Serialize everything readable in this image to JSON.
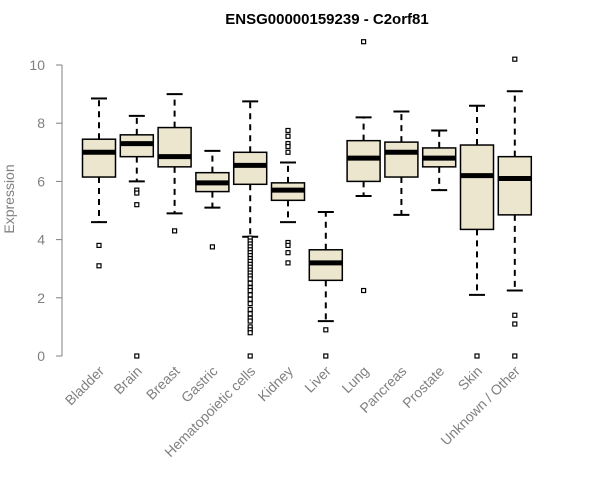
{
  "chart_data": {
    "type": "box",
    "title": "ENSG00000159239 - C2orf81",
    "xlabel": "",
    "ylabel": "Expression",
    "ylim": [
      0,
      11.0
    ],
    "y_ticks": [
      0,
      2,
      4,
      6,
      8,
      10
    ],
    "y_tick_labels": [
      "0",
      "2",
      "4",
      "6",
      "8",
      "10"
    ],
    "grid": false,
    "colors": {
      "box_fill": "#ede6cf",
      "stroke": "#000000",
      "axis": "#808080",
      "title": "#000000"
    },
    "categories": [
      "Bladder",
      "Brain",
      "Breast",
      "Gastric",
      "Hematopoietic cells",
      "Kidney",
      "Liver",
      "Lung",
      "Pancreas",
      "Prostate",
      "Skin",
      "Unknown / Other"
    ],
    "boxes": [
      {
        "name": "Bladder",
        "whisker_low": 4.6,
        "q1": 6.15,
        "median": 7.0,
        "q3": 7.45,
        "whisker_high": 8.85,
        "outliers": [
          3.8,
          3.1
        ]
      },
      {
        "name": "Brain",
        "whisker_low": 6.0,
        "q1": 6.85,
        "median": 7.3,
        "q3": 7.6,
        "whisker_high": 8.25,
        "outliers": [
          5.7,
          5.6,
          5.2,
          0.0
        ]
      },
      {
        "name": "Breast",
        "whisker_low": 4.9,
        "q1": 6.5,
        "median": 6.85,
        "q3": 7.85,
        "whisker_high": 9.0,
        "outliers": [
          4.3
        ]
      },
      {
        "name": "Gastric",
        "whisker_low": 5.1,
        "q1": 5.65,
        "median": 5.95,
        "q3": 6.3,
        "whisker_high": 7.05,
        "outliers": [
          3.75
        ]
      },
      {
        "name": "Hematopoietic cells",
        "whisker_low": 4.1,
        "q1": 5.9,
        "median": 6.55,
        "q3": 7.0,
        "whisker_high": 8.75,
        "outliers": [
          4.05,
          3.95,
          3.85,
          3.75,
          3.65,
          3.55,
          3.45,
          3.35,
          3.25,
          3.15,
          3.05,
          2.95,
          2.85,
          2.75,
          2.65,
          2.5,
          2.35,
          2.25,
          2.1,
          1.95,
          1.8,
          1.6,
          1.45,
          1.3,
          1.2,
          1.0,
          0.9,
          0.8,
          0.0
        ]
      },
      {
        "name": "Kidney",
        "whisker_low": 4.6,
        "q1": 5.35,
        "median": 5.7,
        "q3": 5.95,
        "whisker_high": 6.65,
        "outliers": [
          7.75,
          7.55,
          7.3,
          7.2,
          7.0,
          3.9,
          3.8,
          3.55,
          3.2
        ]
      },
      {
        "name": "Liver",
        "whisker_low": 1.2,
        "q1": 2.6,
        "median": 3.2,
        "q3": 3.65,
        "whisker_high": 4.95,
        "outliers": [
          0.9,
          0.0
        ]
      },
      {
        "name": "Lung",
        "whisker_low": 5.5,
        "q1": 6.0,
        "median": 6.8,
        "q3": 7.4,
        "whisker_high": 8.2,
        "outliers": [
          10.8,
          2.25
        ]
      },
      {
        "name": "Pancreas",
        "whisker_low": 4.85,
        "q1": 6.15,
        "median": 7.0,
        "q3": 7.35,
        "whisker_high": 8.4,
        "outliers": []
      },
      {
        "name": "Prostate",
        "whisker_low": 5.7,
        "q1": 6.5,
        "median": 6.8,
        "q3": 7.15,
        "whisker_high": 7.75,
        "outliers": []
      },
      {
        "name": "Skin",
        "whisker_low": 2.1,
        "q1": 4.35,
        "median": 6.2,
        "q3": 7.25,
        "whisker_high": 8.6,
        "outliers": [
          0.0
        ]
      },
      {
        "name": "Unknown / Other",
        "whisker_low": 2.25,
        "q1": 4.85,
        "median": 6.1,
        "q3": 6.85,
        "whisker_high": 9.1,
        "outliers": [
          10.2,
          1.4,
          1.1,
          0.0
        ]
      }
    ]
  }
}
